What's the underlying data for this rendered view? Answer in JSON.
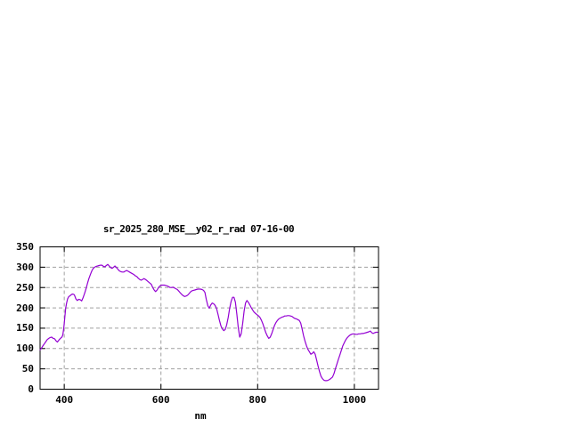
{
  "chart_data": {
    "type": "line",
    "title": "sr_2025_280_MSE__y02_r_rad 07-16-00",
    "xlabel": "nm",
    "ylabel": "",
    "xlim": [
      350,
      1050
    ],
    "ylim": [
      0,
      350
    ],
    "xticks": [
      400,
      600,
      800,
      1000
    ],
    "yticks": [
      0,
      50,
      100,
      150,
      200,
      250,
      300,
      350
    ],
    "grid": true,
    "legend_position": "none",
    "series": [
      {
        "name": "sr_2025_280_MSE__y02_r_rad",
        "color": "#9400d3",
        "points": [
          [
            350,
            97
          ],
          [
            353,
            101
          ],
          [
            356,
            107
          ],
          [
            359,
            112
          ],
          [
            362,
            117
          ],
          [
            365,
            122
          ],
          [
            368,
            125
          ],
          [
            371,
            127
          ],
          [
            374,
            128
          ],
          [
            377,
            125
          ],
          [
            380,
            124
          ],
          [
            383,
            119
          ],
          [
            386,
            116
          ],
          [
            389,
            121
          ],
          [
            392,
            125
          ],
          [
            395,
            128
          ],
          [
            397,
            133
          ],
          [
            399,
            150
          ],
          [
            401,
            175
          ],
          [
            403,
            200
          ],
          [
            405,
            213
          ],
          [
            407,
            222
          ],
          [
            409,
            227
          ],
          [
            412,
            230
          ],
          [
            415,
            233
          ],
          [
            418,
            234
          ],
          [
            421,
            232
          ],
          [
            424,
            222
          ],
          [
            427,
            218
          ],
          [
            430,
            221
          ],
          [
            433,
            220
          ],
          [
            436,
            217
          ],
          [
            439,
            225
          ],
          [
            442,
            235
          ],
          [
            445,
            247
          ],
          [
            448,
            260
          ],
          [
            451,
            272
          ],
          [
            454,
            282
          ],
          [
            457,
            291
          ],
          [
            460,
            297
          ],
          [
            463,
            300
          ],
          [
            466,
            302
          ],
          [
            469,
            303
          ],
          [
            472,
            304
          ],
          [
            475,
            305
          ],
          [
            478,
            305
          ],
          [
            481,
            302
          ],
          [
            484,
            301
          ],
          [
            487,
            304
          ],
          [
            490,
            307
          ],
          [
            493,
            303
          ],
          [
            496,
            299
          ],
          [
            499,
            297
          ],
          [
            502,
            300
          ],
          [
            505,
            303
          ],
          [
            508,
            299
          ],
          [
            511,
            295
          ],
          [
            514,
            291
          ],
          [
            517,
            289
          ],
          [
            520,
            288
          ],
          [
            523,
            288
          ],
          [
            526,
            290
          ],
          [
            529,
            292
          ],
          [
            532,
            290
          ],
          [
            535,
            288
          ],
          [
            538,
            286
          ],
          [
            541,
            284
          ],
          [
            544,
            282
          ],
          [
            547,
            279
          ],
          [
            550,
            277
          ],
          [
            553,
            273
          ],
          [
            556,
            270
          ],
          [
            559,
            268
          ],
          [
            562,
            270
          ],
          [
            565,
            272
          ],
          [
            568,
            270
          ],
          [
            571,
            267
          ],
          [
            574,
            264
          ],
          [
            577,
            261
          ],
          [
            580,
            258
          ],
          [
            583,
            250
          ],
          [
            586,
            244
          ],
          [
            589,
            240
          ],
          [
            592,
            244
          ],
          [
            595,
            250
          ],
          [
            598,
            254
          ],
          [
            601,
            256
          ],
          [
            604,
            256
          ],
          [
            607,
            256
          ],
          [
            610,
            255
          ],
          [
            613,
            254
          ],
          [
            616,
            252
          ],
          [
            619,
            250
          ],
          [
            622,
            250
          ],
          [
            625,
            251
          ],
          [
            628,
            249
          ],
          [
            631,
            247
          ],
          [
            634,
            245
          ],
          [
            637,
            241
          ],
          [
            640,
            237
          ],
          [
            643,
            233
          ],
          [
            646,
            230
          ],
          [
            649,
            228
          ],
          [
            652,
            229
          ],
          [
            655,
            231
          ],
          [
            658,
            235
          ],
          [
            661,
            239
          ],
          [
            664,
            242
          ],
          [
            667,
            243
          ],
          [
            670,
            244
          ],
          [
            673,
            245
          ],
          [
            676,
            246
          ],
          [
            679,
            246
          ],
          [
            682,
            246
          ],
          [
            685,
            245
          ],
          [
            688,
            243
          ],
          [
            691,
            238
          ],
          [
            694,
            220
          ],
          [
            697,
            205
          ],
          [
            700,
            199
          ],
          [
            703,
            207
          ],
          [
            706,
            212
          ],
          [
            709,
            210
          ],
          [
            712,
            206
          ],
          [
            715,
            199
          ],
          [
            718,
            184
          ],
          [
            721,
            169
          ],
          [
            724,
            156
          ],
          [
            727,
            148
          ],
          [
            730,
            144
          ],
          [
            733,
            147
          ],
          [
            736,
            158
          ],
          [
            739,
            176
          ],
          [
            742,
            198
          ],
          [
            745,
            215
          ],
          [
            748,
            226
          ],
          [
            751,
            226
          ],
          [
            754,
            214
          ],
          [
            757,
            185
          ],
          [
            760,
            150
          ],
          [
            763,
            128
          ],
          [
            766,
            136
          ],
          [
            769,
            162
          ],
          [
            772,
            192
          ],
          [
            775,
            212
          ],
          [
            778,
            218
          ],
          [
            781,
            213
          ],
          [
            784,
            207
          ],
          [
            787,
            200
          ],
          [
            790,
            194
          ],
          [
            793,
            189
          ],
          [
            796,
            186
          ],
          [
            799,
            183
          ],
          [
            802,
            180
          ],
          [
            805,
            176
          ],
          [
            808,
            169
          ],
          [
            811,
            160
          ],
          [
            814,
            149
          ],
          [
            817,
            139
          ],
          [
            820,
            131
          ],
          [
            823,
            125
          ],
          [
            826,
            128
          ],
          [
            829,
            136
          ],
          [
            832,
            147
          ],
          [
            835,
            157
          ],
          [
            838,
            164
          ],
          [
            841,
            169
          ],
          [
            844,
            173
          ],
          [
            847,
            175
          ],
          [
            850,
            177
          ],
          [
            853,
            178
          ],
          [
            856,
            180
          ],
          [
            859,
            180
          ],
          [
            862,
            181
          ],
          [
            865,
            181
          ],
          [
            868,
            180
          ],
          [
            871,
            179
          ],
          [
            874,
            176
          ],
          [
            877,
            174
          ],
          [
            880,
            173
          ],
          [
            883,
            171
          ],
          [
            886,
            169
          ],
          [
            889,
            163
          ],
          [
            892,
            148
          ],
          [
            895,
            131
          ],
          [
            898,
            118
          ],
          [
            901,
            107
          ],
          [
            904,
            98
          ],
          [
            907,
            92
          ],
          [
            910,
            86
          ],
          [
            913,
            88
          ],
          [
            916,
            92
          ],
          [
            919,
            86
          ],
          [
            922,
            72
          ],
          [
            925,
            57
          ],
          [
            928,
            43
          ],
          [
            931,
            32
          ],
          [
            934,
            26
          ],
          [
            937,
            22
          ],
          [
            940,
            21
          ],
          [
            943,
            21
          ],
          [
            946,
            22
          ],
          [
            949,
            24
          ],
          [
            952,
            27
          ],
          [
            955,
            30
          ],
          [
            958,
            39
          ],
          [
            961,
            51
          ],
          [
            964,
            62
          ],
          [
            967,
            73
          ],
          [
            970,
            84
          ],
          [
            973,
            95
          ],
          [
            976,
            106
          ],
          [
            979,
            114
          ],
          [
            982,
            121
          ],
          [
            985,
            126
          ],
          [
            988,
            130
          ],
          [
            991,
            133
          ],
          [
            994,
            135
          ],
          [
            997,
            136
          ],
          [
            1000,
            136
          ],
          [
            1003,
            135
          ],
          [
            1006,
            135
          ],
          [
            1009,
            136
          ],
          [
            1012,
            136
          ],
          [
            1015,
            137
          ],
          [
            1018,
            137
          ],
          [
            1021,
            138
          ],
          [
            1024,
            139
          ],
          [
            1027,
            140
          ],
          [
            1030,
            141
          ],
          [
            1033,
            143
          ],
          [
            1036,
            139
          ],
          [
            1039,
            137
          ],
          [
            1042,
            139
          ],
          [
            1045,
            140
          ],
          [
            1048,
            140
          ]
        ]
      }
    ]
  },
  "colors": {
    "background": "#ffffff",
    "border": "#000000",
    "grid": "#a0a0a0",
    "text": "#000000",
    "line": "#9400d3"
  }
}
